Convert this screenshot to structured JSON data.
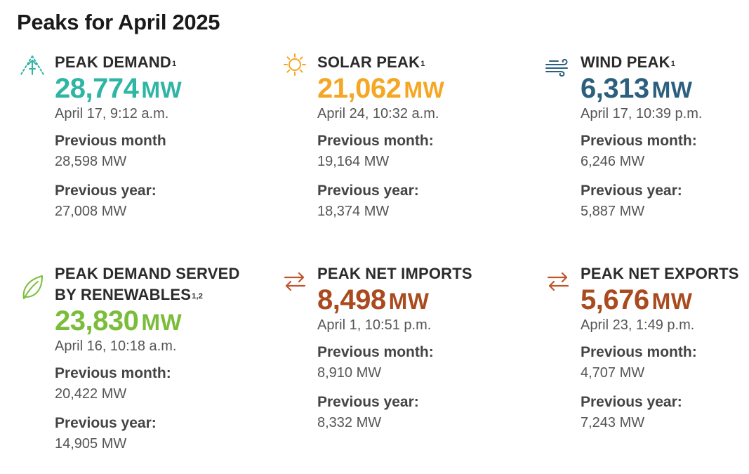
{
  "page": {
    "title": "Peaks for April 2025"
  },
  "colors": {
    "demand": "#2fb5a4",
    "solar": "#f5a623",
    "wind": "#2c5f7e",
    "renewables": "#7bbd3a",
    "imports": "#a94b1f",
    "exports": "#a94b1f"
  },
  "cards": {
    "demand": {
      "icon": "demand-tower-icon",
      "title": "PEAK DEMAND",
      "sup": "1",
      "value": "28,774",
      "unit": "MW",
      "date": "April 17, 9:12 a.m.",
      "prev_month_label": "Previous month",
      "prev_month_value": "28,598 MW",
      "prev_year_label": "Previous year:",
      "prev_year_value": "27,008 MW"
    },
    "solar": {
      "icon": "sun-icon",
      "title": "SOLAR PEAK",
      "sup": "1",
      "value": "21,062",
      "unit": "MW",
      "date": "April 24, 10:32 a.m.",
      "prev_month_label": "Previous month:",
      "prev_month_value": "19,164 MW",
      "prev_year_label": "Previous year:",
      "prev_year_value": "18,374 MW"
    },
    "wind": {
      "icon": "wind-icon",
      "title": "WIND PEAK",
      "sup": "1",
      "value": "6,313",
      "unit": "MW",
      "date": "April 17, 10:39 p.m.",
      "prev_month_label": "Previous month:",
      "prev_month_value": "6,246 MW",
      "prev_year_label": "Previous year:",
      "prev_year_value": "5,887 MW"
    },
    "renewables": {
      "icon": "leaf-icon",
      "title_line1": "PEAK DEMAND SERVED",
      "title_line2": "BY RENEWABLES",
      "sup": "1,2",
      "value": "23,830",
      "unit": "MW",
      "date": "April 16, 10:18 a.m.",
      "prev_month_label": "Previous month:",
      "prev_month_value": "20,422 MW",
      "prev_year_label": "Previous year:",
      "prev_year_value": "14,905 MW"
    },
    "imports": {
      "icon": "exchange-arrows-icon",
      "title": "PEAK NET IMPORTS",
      "value": "8,498",
      "unit": "MW",
      "date": "April 1, 10:51 p.m.",
      "prev_month_label": "Previous month:",
      "prev_month_value": "8,910 MW",
      "prev_year_label": "Previous year:",
      "prev_year_value": "8,332 MW"
    },
    "exports": {
      "icon": "exchange-arrows-icon",
      "title": "PEAK NET EXPORTS",
      "value": "5,676",
      "unit": "MW",
      "date": "April 23, 1:49 p.m.",
      "prev_month_label": "Previous month:",
      "prev_month_value": "4,707 MW",
      "prev_year_label": "Previous year:",
      "prev_year_value": "7,243 MW"
    }
  }
}
